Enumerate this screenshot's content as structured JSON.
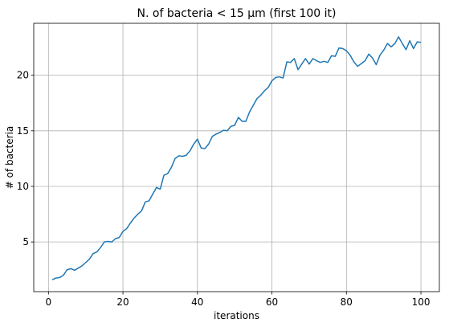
{
  "chart_data": {
    "type": "line",
    "title": "N. of bacteria < 15 μm (first 100 it)",
    "xlabel": "iterations",
    "ylabel": "# of bacteria",
    "xlim": [
      -3.95,
      104.95
    ],
    "ylim": [
      0.53,
      24.67
    ],
    "grid": true,
    "xticks": [
      0,
      20,
      40,
      60,
      80,
      100
    ],
    "yticks": [
      5,
      10,
      15,
      20
    ],
    "line_color": "#1f77b4",
    "series": [
      {
        "x": [
          1,
          2,
          3,
          4,
          5,
          6,
          7,
          8,
          9,
          10,
          11,
          12,
          13,
          14,
          15,
          16,
          17,
          18,
          19,
          20,
          21,
          22,
          23,
          24,
          25,
          26,
          27,
          28,
          29,
          30,
          31,
          32,
          33,
          34,
          35,
          36,
          37,
          38,
          39,
          40,
          41,
          42,
          43,
          44,
          45,
          46,
          47,
          48,
          49,
          50,
          51,
          52,
          53,
          54,
          55,
          56,
          57,
          58,
          59,
          60,
          61,
          62,
          63,
          64,
          65,
          66,
          67,
          68,
          69,
          70,
          71,
          72,
          73,
          74,
          75,
          76,
          77,
          78,
          79,
          80,
          81,
          82,
          83,
          84,
          85,
          86,
          87,
          88,
          89,
          90,
          91,
          92,
          93,
          94,
          95,
          96,
          97,
          98,
          99,
          100
        ],
        "values": [
          1.6,
          1.75,
          1.8,
          2.0,
          2.5,
          2.6,
          2.45,
          2.65,
          2.85,
          3.15,
          3.45,
          3.95,
          4.1,
          4.5,
          5.0,
          5.05,
          5.0,
          5.3,
          5.4,
          5.95,
          6.2,
          6.7,
          7.15,
          7.5,
          7.8,
          8.6,
          8.7,
          9.3,
          9.9,
          9.75,
          11.0,
          11.15,
          11.7,
          12.5,
          12.75,
          12.7,
          12.8,
          13.2,
          13.8,
          14.25,
          13.45,
          13.4,
          13.8,
          14.5,
          14.7,
          14.85,
          15.05,
          15.0,
          15.4,
          15.5,
          16.2,
          15.85,
          15.85,
          16.7,
          17.3,
          17.9,
          18.2,
          18.6,
          18.9,
          19.5,
          19.8,
          19.85,
          19.75,
          21.2,
          21.15,
          21.5,
          20.5,
          21.0,
          21.5,
          21.0,
          21.5,
          21.3,
          21.15,
          21.25,
          21.15,
          21.75,
          21.7,
          22.45,
          22.4,
          22.2,
          21.8,
          21.2,
          20.8,
          21.05,
          21.3,
          21.9,
          21.55,
          20.95,
          21.8,
          22.25,
          22.85,
          22.55,
          22.85,
          23.45,
          22.85,
          22.3,
          23.1,
          22.4,
          23.0,
          22.95
        ]
      }
    ]
  }
}
